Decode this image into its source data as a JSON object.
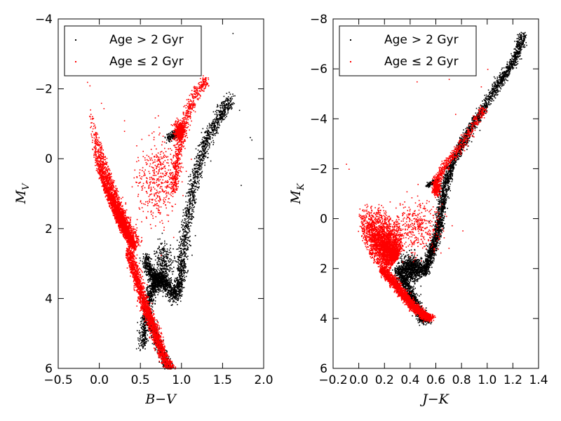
{
  "chart_data": [
    {
      "type": "scatter",
      "title": "",
      "xlabel": "B−V",
      "ylabel": "M_V",
      "ylabel_main": "M",
      "ylabel_sub": "V",
      "xlim": [
        -0.5,
        2.0
      ],
      "ylim": [
        6,
        -4
      ],
      "xticks": [
        -0.5,
        0.0,
        0.5,
        1.0,
        1.5,
        2.0
      ],
      "xtick_labels": [
        "−0.5",
        "0.0",
        "0.5",
        "1.0",
        "1.5",
        "2.0"
      ],
      "yticks": [
        -4,
        -2,
        0,
        2,
        4,
        6
      ],
      "ytick_labels": [
        "−4",
        "−2",
        "0",
        "2",
        "4",
        "6"
      ],
      "legend": {
        "position": "upper-left",
        "entries": [
          {
            "label": "Age >2 Gyr",
            "text_main": "Age",
            "op": ">",
            "text_tail": "2 Gyr",
            "color": "#000000"
          },
          {
            "label": "Age ≤2 Gyr",
            "text_main": "Age",
            "op": "≤",
            "text_tail": "2 Gyr",
            "color": "#ff0000"
          }
        ]
      },
      "series": [
        {
          "name": "Age > 2 Gyr",
          "color": "#000000",
          "structures": [
            {
              "kind": "band",
              "path": [
                [
                  0.52,
                  5.3
                ],
                [
                  0.56,
                  4.6
                ],
                [
                  0.6,
                  4.0
                ],
                [
                  0.66,
                  3.6
                ],
                [
                  0.74,
                  3.4
                ],
                [
                  0.82,
                  3.6
                ],
                [
                  0.9,
                  3.95
                ],
                [
                  0.98,
                  3.55
                ],
                [
                  1.0,
                  3.0
                ],
                [
                  1.05,
                  2.0
                ],
                [
                  1.12,
                  1.0
                ],
                [
                  1.2,
                  0.2
                ],
                [
                  1.3,
                  -0.6
                ],
                [
                  1.45,
                  -1.2
                ],
                [
                  1.6,
                  -1.7
                ]
              ],
              "width": 0.06,
              "count": 2600
            },
            {
              "kind": "band",
              "path": [
                [
                  0.55,
                  2.8
                ],
                [
                  0.6,
                  3.2
                ],
                [
                  0.68,
                  3.4
                ],
                [
                  0.78,
                  3.5
                ]
              ],
              "width": 0.05,
              "count": 500
            },
            {
              "kind": "band",
              "path": [
                [
                  0.82,
                  -0.6
                ],
                [
                  0.9,
                  -0.7
                ],
                [
                  0.98,
                  -0.75
                ]
              ],
              "width": 0.03,
              "count": 160
            },
            {
              "kind": "band",
              "path": [
                [
                  0.6,
                  4.5
                ],
                [
                  0.7,
                  5.2
                ],
                [
                  0.82,
                  5.9
                ],
                [
                  0.9,
                  6.2
                ]
              ],
              "width": 0.045,
              "count": 700
            },
            {
              "kind": "cloud",
              "center": [
                0.78,
                3.0
              ],
              "spread": [
                0.12,
                0.6
              ],
              "count": 300
            },
            {
              "kind": "list",
              "points": [
                [
                  1.62,
                  -3.6
                ],
                [
                  1.72,
                  0.75
                ],
                [
                  1.85,
                  -0.55
                ],
                [
                  1.83,
                  -0.62
                ],
                [
                  1.7,
                  -1.4
                ],
                [
                  1.48,
                  -1.6
                ],
                [
                  1.35,
                  0.05
                ]
              ]
            }
          ]
        },
        {
          "name": "Age ≤ 2 Gyr",
          "color": "#ff0000",
          "structures": [
            {
              "kind": "fan",
              "tip": [
                0.43,
                2.6
              ],
              "upper": [
                [
                  -0.15,
                  -1.8
                ],
                [
                  -0.12,
                  -0.6
                ],
                [
                  -0.05,
                  0.3
                ],
                [
                  0.1,
                  0.9
                ],
                [
                  0.25,
                  1.4
                ],
                [
                  0.4,
                  1.9
                ],
                [
                  0.55,
                  2.4
                ]
              ],
              "lower": [
                [
                  -0.1,
                  -1.2
                ],
                [
                  -0.05,
                  0.0
                ],
                [
                  0.05,
                  1.0
                ],
                [
                  0.2,
                  1.9
                ],
                [
                  0.35,
                  2.5
                ]
              ],
              "count": 3200
            },
            {
              "kind": "band",
              "path": [
                [
                  0.35,
                  2.6
                ],
                [
                  0.45,
                  3.4
                ],
                [
                  0.55,
                  4.2
                ],
                [
                  0.65,
                  4.8
                ],
                [
                  0.75,
                  5.5
                ],
                [
                  0.9,
                  6.2
                ]
              ],
              "width": 0.05,
              "count": 2200
            },
            {
              "kind": "band",
              "path": [
                [
                  0.9,
                  0.9
                ],
                [
                  0.93,
                  0.2
                ],
                [
                  0.98,
                  -0.5
                ],
                [
                  1.05,
                  -1.2
                ],
                [
                  1.15,
                  -1.8
                ],
                [
                  1.3,
                  -2.3
                ]
              ],
              "width": 0.05,
              "count": 700
            },
            {
              "kind": "cloud",
              "center": [
                0.97,
                -0.8
              ],
              "spread": [
                0.06,
                0.25
              ],
              "count": 400
            },
            {
              "kind": "cloud",
              "center": [
                0.7,
                0.6
              ],
              "spread": [
                0.25,
                1.2
              ],
              "count": 450
            },
            {
              "kind": "list",
              "points": [
                [
                  -0.15,
                  -2.2
                ],
                [
                  -0.12,
                  -2.1
                ],
                [
                  0.02,
                  -1.6
                ],
                [
                  0.05,
                  -1.45
                ],
                [
                  0.3,
                  -1.1
                ],
                [
                  0.55,
                  -3.8
                ],
                [
                  0.9,
                  -1.0
                ],
                [
                  0.3,
                  -0.8
                ]
              ]
            }
          ]
        }
      ]
    },
    {
      "type": "scatter",
      "title": "",
      "xlabel": "J−K",
      "ylabel": "M_K",
      "ylabel_main": "M",
      "ylabel_sub": "K",
      "xlim": [
        -0.2,
        1.4
      ],
      "ylim": [
        6,
        -8
      ],
      "xticks": [
        -0.2,
        0.0,
        0.2,
        0.4,
        0.6,
        0.8,
        1.0,
        1.2,
        1.4
      ],
      "xtick_labels": [
        "−0.2",
        "0.0",
        "0.2",
        "0.4",
        "0.6",
        "0.8",
        "1.0",
        "1.2",
        "1.4"
      ],
      "yticks": [
        -8,
        -6,
        -4,
        -2,
        0,
        2,
        4,
        6
      ],
      "ytick_labels": [
        "−8",
        "−6",
        "−4",
        "−2",
        "0",
        "2",
        "4",
        "6"
      ],
      "legend": {
        "position": "upper-left",
        "entries": [
          {
            "label": "Age >2 Gyr",
            "text_main": "Age",
            "op": ">",
            "text_tail": "2 Gyr",
            "color": "#000000"
          },
          {
            "label": "Age ≤2 Gyr",
            "text_main": "Age",
            "op": "≤",
            "text_tail": "2 Gyr",
            "color": "#ff0000"
          }
        ]
      },
      "series": [
        {
          "name": "Age > 2 Gyr",
          "color": "#000000",
          "structures": [
            {
              "kind": "band",
              "path": [
                [
                  0.3,
                  2.0
                ],
                [
                  0.36,
                  2.6
                ],
                [
                  0.42,
                  3.2
                ],
                [
                  0.48,
                  3.8
                ],
                [
                  0.52,
                  4.1
                ]
              ],
              "width": 0.04,
              "count": 900
            },
            {
              "kind": "band",
              "path": [
                [
                  0.5,
                  2.2
                ],
                [
                  0.55,
                  1.5
                ],
                [
                  0.6,
                  0.8
                ],
                [
                  0.63,
                  0.0
                ],
                [
                  0.66,
                  -1.2
                ],
                [
                  0.72,
                  -2.2
                ],
                [
                  0.82,
                  -3.2
                ],
                [
                  0.95,
                  -4.3
                ],
                [
                  1.08,
                  -5.4
                ],
                [
                  1.2,
                  -6.3
                ],
                [
                  1.28,
                  -7.4
                ]
              ],
              "width": 0.035,
              "count": 2800
            },
            {
              "kind": "cloud",
              "center": [
                0.4,
                2.0
              ],
              "spread": [
                0.1,
                0.5
              ],
              "count": 900
            },
            {
              "kind": "band",
              "path": [
                [
                  0.53,
                  -1.35
                ],
                [
                  0.57,
                  -1.45
                ],
                [
                  0.61,
                  -1.55
                ]
              ],
              "width": 0.02,
              "count": 140
            },
            {
              "kind": "list",
              "points": [
                [
                  1.28,
                  -7.4
                ],
                [
                  1.26,
                  -7.3
                ],
                [
                  1.22,
                  -6.6
                ],
                [
                  1.2,
                  -6.4
                ],
                [
                  1.15,
                  -6.2
                ],
                [
                  1.1,
                  -5.8
                ],
                [
                  1.05,
                  -5.7
                ]
              ]
            }
          ]
        },
        {
          "name": "Age ≤ 2 Gyr",
          "color": "#ff0000",
          "structures": [
            {
              "kind": "fan",
              "tip": [
                0.3,
                1.6
              ],
              "upper": [
                [
                  -0.02,
                  -0.3
                ],
                [
                  0.05,
                  -0.7
                ],
                [
                  0.15,
                  -0.7
                ],
                [
                  0.25,
                  -0.3
                ],
                [
                  0.33,
                  0.3
                ],
                [
                  0.36,
                  1.0
                ]
              ],
              "lower": [
                [
                  -0.02,
                  0.4
                ],
                [
                  0.05,
                  1.3
                ],
                [
                  0.12,
                  1.9
                ],
                [
                  0.22,
                  2.2
                ]
              ],
              "count": 3000
            },
            {
              "kind": "band",
              "path": [
                [
                  0.18,
                  2.0
                ],
                [
                  0.26,
                  2.5
                ],
                [
                  0.34,
                  3.0
                ],
                [
                  0.42,
                  3.5
                ],
                [
                  0.5,
                  3.85
                ],
                [
                  0.55,
                  3.95
                ]
              ],
              "width": 0.035,
              "count": 2200
            },
            {
              "kind": "cloud",
              "center": [
                0.6,
                -1.3
              ],
              "spread": [
                0.03,
                0.35
              ],
              "count": 300
            },
            {
              "kind": "band",
              "path": [
                [
                  0.6,
                  -1.5
                ],
                [
                  0.65,
                  -2.0
                ],
                [
                  0.72,
                  -2.5
                ],
                [
                  0.8,
                  -3.0
                ],
                [
                  0.9,
                  -3.8
                ],
                [
                  0.97,
                  -4.5
                ]
              ],
              "width": 0.035,
              "count": 500
            },
            {
              "kind": "cloud",
              "center": [
                0.45,
                0.3
              ],
              "spread": [
                0.2,
                1.0
              ],
              "count": 400
            },
            {
              "kind": "list",
              "points": [
                [
                  -0.1,
                  -2.2
                ],
                [
                  -0.08,
                  -2.0
                ],
                [
                  0.9,
                  -6.7
                ],
                [
                  0.85,
                  -6.0
                ],
                [
                  0.7,
                  -5.6
                ],
                [
                  0.45,
                  -5.5
                ],
                [
                  0.95,
                  -5.3
                ],
                [
                  1.0,
                  -6.0
                ],
                [
                  0.75,
                  -4.2
                ]
              ]
            }
          ]
        }
      ]
    }
  ]
}
